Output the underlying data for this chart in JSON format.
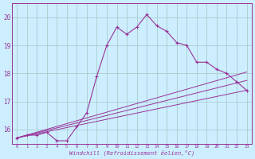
{
  "xlabel": "Windchill (Refroidissement éolien,°C)",
  "bg_color": "#cceeff",
  "grid_color": "#aacccc",
  "line_color": "#993399",
  "xlim": [
    -0.5,
    23.5
  ],
  "ylim": [
    15.5,
    20.5
  ],
  "yticks": [
    16,
    17,
    18,
    19,
    20
  ],
  "xticks": [
    0,
    1,
    2,
    3,
    4,
    5,
    6,
    7,
    8,
    9,
    10,
    11,
    12,
    13,
    14,
    15,
    16,
    17,
    18,
    19,
    20,
    21,
    22,
    23
  ],
  "line1_x": [
    0,
    1,
    2,
    3,
    4,
    5,
    6,
    7,
    8,
    9,
    10,
    11,
    12,
    13,
    14,
    15,
    16,
    17,
    18,
    19,
    20,
    21,
    22,
    23
  ],
  "line1_y": [
    15.7,
    15.8,
    15.8,
    15.9,
    15.6,
    15.6,
    16.1,
    16.6,
    17.9,
    19.0,
    19.65,
    19.4,
    19.65,
    20.1,
    19.7,
    19.5,
    19.1,
    19.0,
    18.4,
    18.4,
    18.15,
    18.0,
    17.7,
    17.4
  ],
  "line2_x": [
    0,
    23
  ],
  "line2_y": [
    15.7,
    17.4
  ],
  "line3_x": [
    0,
    23
  ],
  "line3_y": [
    15.7,
    18.05
  ],
  "line4_x": [
    0,
    23
  ],
  "line4_y": [
    15.7,
    17.75
  ]
}
